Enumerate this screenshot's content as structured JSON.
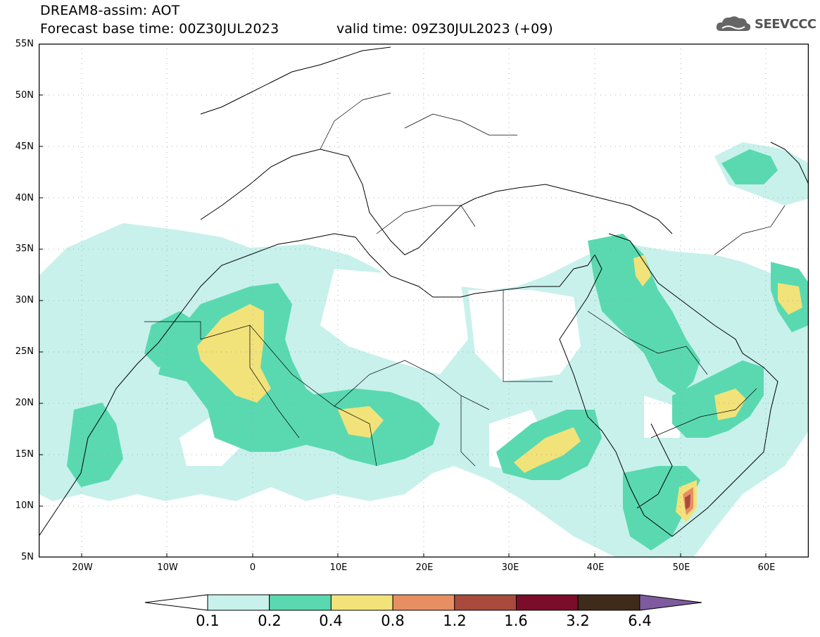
{
  "header": {
    "title": "DREAM8-assim: AOT",
    "base_time": "Forecast base time: 00Z30JUL2023",
    "valid_time": "valid time: 09Z30JUL2023 (+09)",
    "logo_text": "SEEVCCC",
    "logo_icon": "cloud-icon"
  },
  "map": {
    "lat_labels": [
      "55N",
      "50N",
      "45N",
      "40N",
      "35N",
      "30N",
      "25N",
      "20N",
      "15N",
      "10N",
      "5N"
    ],
    "lon_labels": [
      "20W",
      "10W",
      "0",
      "10E",
      "20E",
      "30E",
      "40E",
      "50E",
      "60E"
    ],
    "lon_range": [
      -25,
      65
    ],
    "lat_range": [
      5,
      55
    ],
    "grid": "dotted"
  },
  "colorbar": {
    "levels": [
      "0.1",
      "0.2",
      "0.4",
      "0.8",
      "1.2",
      "1.6",
      "3.2",
      "6.4"
    ],
    "colors": [
      "#c8f1ec",
      "#5ad9b0",
      "#f2e27a",
      "#e88e63",
      "#a84a3c",
      "#7c0d28",
      "#3f2b1a",
      "#7e5b9e"
    ],
    "under_color": "#ffffff",
    "over_color": "#7e5b9e"
  }
}
